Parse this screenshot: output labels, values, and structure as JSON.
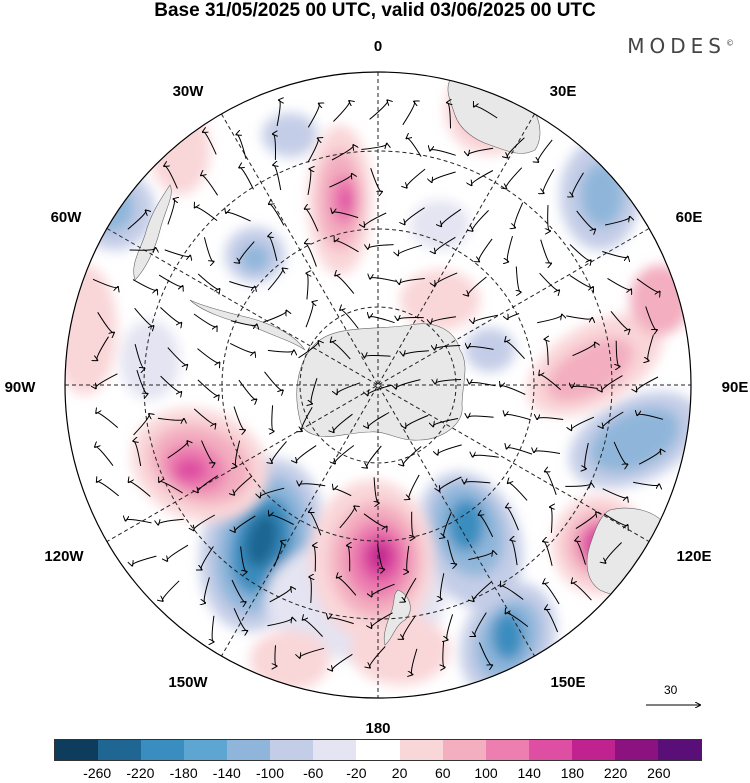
{
  "title": "Base 31/05/2025 00 UTC, valid 03/06/2025 00 UTC",
  "brand": "MODES",
  "brand_mark": "©",
  "longitude_labels": {
    "lon_0": "0",
    "lon_30e": "30E",
    "lon_60e": "60E",
    "lon_90e": "90E",
    "lon_120e": "120E",
    "lon_150e": "150E",
    "lon_180": "180",
    "lon_150w": "150W",
    "lon_120w": "120W",
    "lon_90w": "90W",
    "lon_60w": "60W",
    "lon_30w": "30W"
  },
  "reference_vector": {
    "label": "30"
  },
  "colorbar": {
    "colors": [
      "#0e3c5c",
      "#1f6693",
      "#3a8dbf",
      "#5ea6d2",
      "#8fb6da",
      "#c4cde7",
      "#e4e4f2",
      "#ffffff",
      "#f9d6d8",
      "#f3aec0",
      "#ec7fb0",
      "#de4ea2",
      "#c0238f",
      "#8c1280",
      "#5a0e78"
    ],
    "labels": [
      "-260",
      "-220",
      "-180",
      "-140",
      "-100",
      "-60",
      "-20",
      "20",
      "60",
      "100",
      "140",
      "180",
      "220",
      "260"
    ]
  }
}
